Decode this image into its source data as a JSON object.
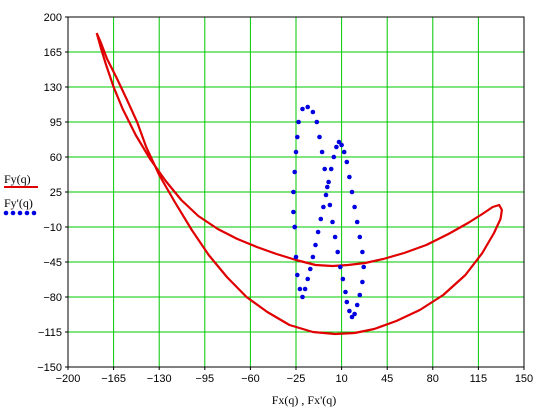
{
  "chart_data": {
    "type": "line",
    "xlabel": "Fx(q) , Fx'(q)",
    "ylabel": "",
    "xlim": [
      -200,
      150
    ],
    "ylim": [
      -150,
      200
    ],
    "x_ticks": [
      -200,
      -165,
      -130,
      -95,
      -60,
      -25,
      10,
      45,
      80,
      115,
      150
    ],
    "y_ticks": [
      200,
      165,
      130,
      95,
      60,
      25,
      -10,
      -45,
      -80,
      -115,
      -150
    ],
    "x_tick_labels": [
      "−200",
      "−165",
      "−130",
      "−95",
      "−60",
      "−25",
      "10",
      "45",
      "80",
      "115",
      "150"
    ],
    "y_tick_labels": [
      "200",
      "165",
      "130",
      "95",
      "60",
      "25",
      "−10",
      "−45",
      "−80",
      "−115",
      "−150"
    ],
    "grid": true,
    "legend_position": "left",
    "series": [
      {
        "name": "Fy(q)",
        "style": "solid",
        "color": "#e00000",
        "x": [
          -178,
          -175,
          -170,
          -163,
          -155,
          -147,
          -140,
          -130,
          -118,
          -105,
          -92,
          -78,
          -63,
          -47,
          -30,
          -12,
          5,
          20,
          35,
          52,
          70,
          88,
          105,
          118,
          127,
          132,
          133,
          131,
          126,
          118,
          107,
          92,
          75,
          58,
          42,
          28,
          15,
          3,
          -10,
          -25,
          -40,
          -55,
          -70,
          -85,
          -100,
          -113,
          -125,
          -137,
          -148,
          -158,
          -165,
          -171,
          -175,
          -178
        ],
        "y": [
          184,
          175,
          158,
          140,
          118,
          95,
          70,
          42,
          15,
          -13,
          -38,
          -60,
          -80,
          -95,
          -108,
          -115,
          -117,
          -116,
          -112,
          -104,
          -93,
          -78,
          -58,
          -36,
          -16,
          -2,
          7,
          12,
          10,
          3,
          -6,
          -17,
          -28,
          -36,
          -42,
          -46,
          -48,
          -49,
          -48,
          -43,
          -37,
          -30,
          -22,
          -12,
          1,
          17,
          36,
          58,
          82,
          108,
          130,
          153,
          170,
          184
        ]
      },
      {
        "name": "Fy'(q)",
        "style": "dotted",
        "color": "#0000e0",
        "x": [
          -26,
          -27,
          -27,
          -26,
          -25,
          -24,
          -23,
          -20,
          -16,
          -12,
          -9,
          -7,
          -5,
          -3,
          -1,
          1,
          3,
          5,
          7,
          9,
          11,
          13,
          14,
          16,
          18,
          20,
          22,
          24,
          26,
          27,
          26,
          24,
          22,
          20,
          18,
          16,
          14,
          12,
          10,
          8,
          6,
          4,
          2,
          0,
          -2,
          -4,
          -6,
          -8,
          -10,
          -12,
          -14,
          -16,
          -18,
          -20,
          -22,
          -24,
          -25,
          -26
        ],
        "y": [
          -10,
          5,
          25,
          45,
          65,
          80,
          95,
          108,
          110,
          105,
          95,
          80,
          65,
          48,
          30,
          12,
          -5,
          -20,
          -35,
          -50,
          -62,
          -75,
          -85,
          -94,
          -100,
          -97,
          -88,
          -78,
          -65,
          -50,
          -35,
          -20,
          -5,
          10,
          25,
          40,
          55,
          65,
          72,
          75,
          70,
          60,
          48,
          35,
          22,
          10,
          -2,
          -15,
          -28,
          -40,
          -52,
          -62,
          -72,
          -80,
          -72,
          -58,
          -40,
          -10
        ]
      }
    ]
  }
}
